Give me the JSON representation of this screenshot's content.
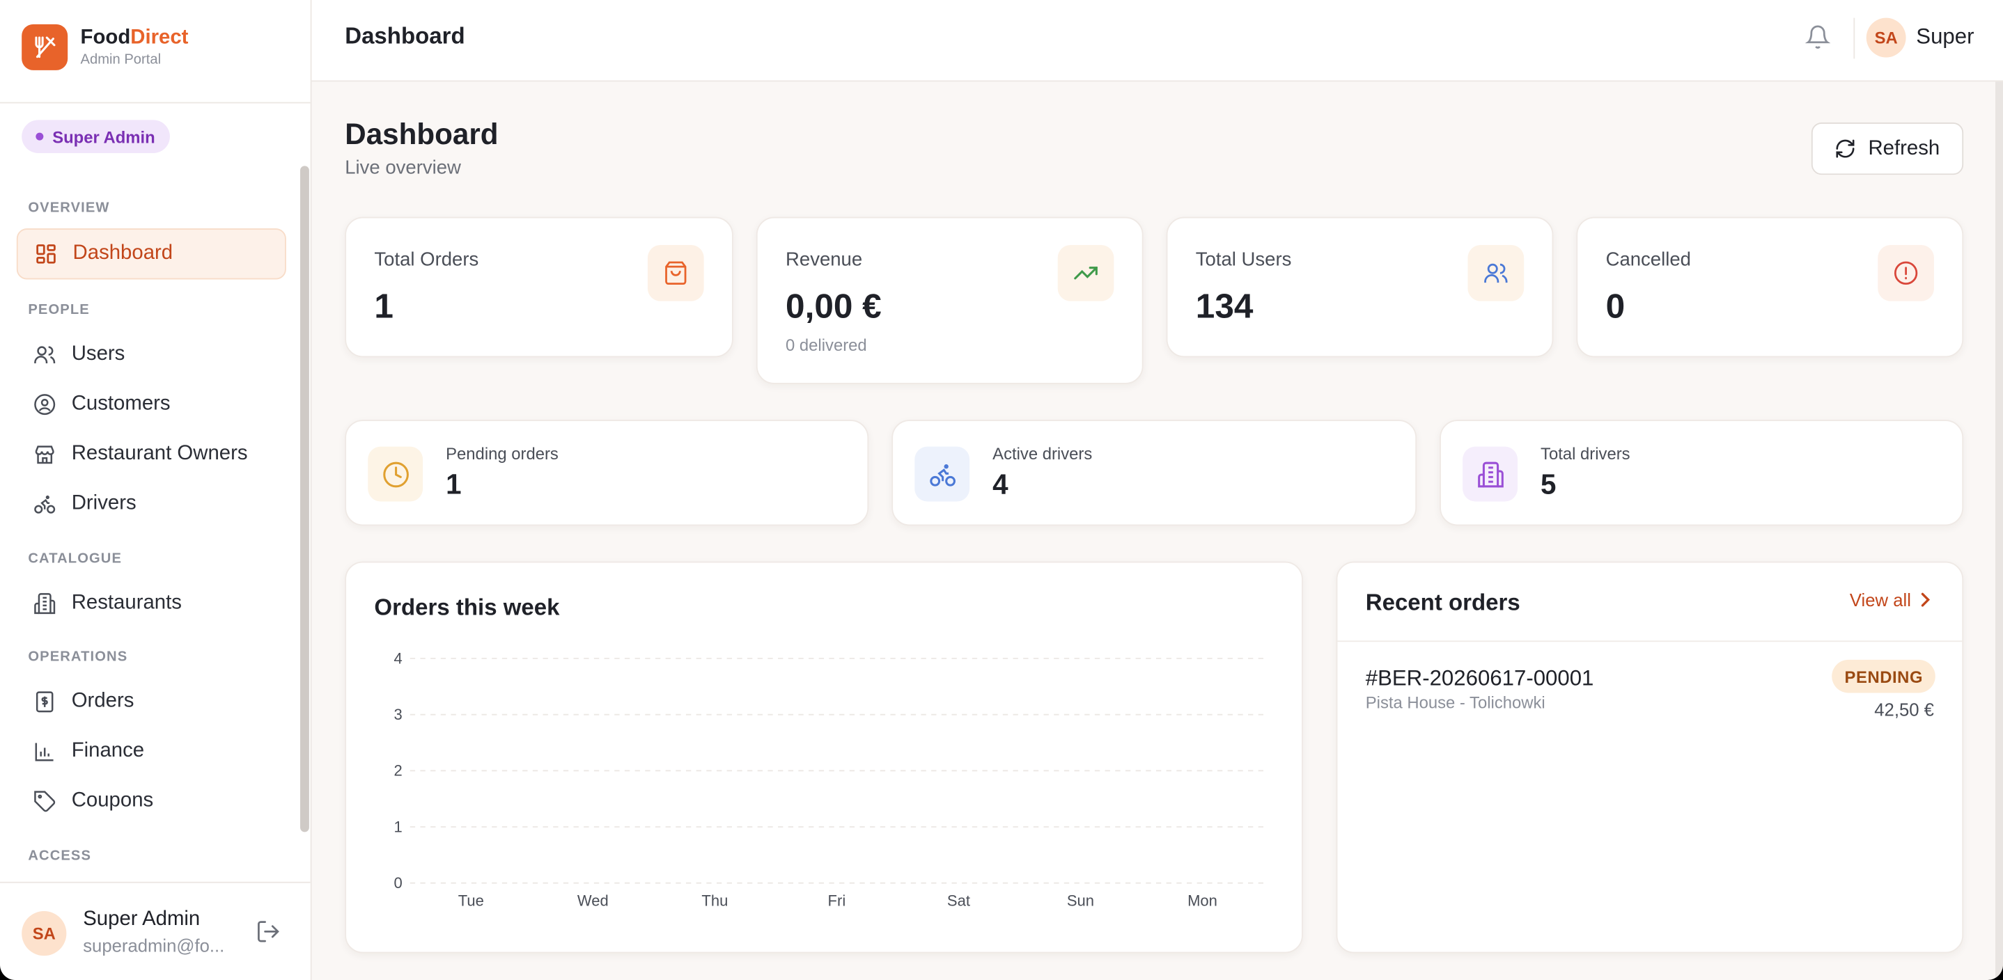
{
  "brand": {
    "name_part1": "Food",
    "name_part2": "Direct",
    "subtitle": "Admin Portal",
    "accent": "#e8632a"
  },
  "role_badge": "Super Admin",
  "sidebar": {
    "sections": {
      "overview": "OVERVIEW",
      "people": "PEOPLE",
      "catalogue": "CATALOGUE",
      "operations": "OPERATIONS",
      "access": "ACCESS"
    },
    "items": [
      {
        "label": "Dashboard",
        "icon": "dashboard-icon",
        "active": true
      },
      {
        "label": "Users",
        "icon": "users-icon"
      },
      {
        "label": "Customers",
        "icon": "customer-icon"
      },
      {
        "label": "Restaurant Owners",
        "icon": "store-icon"
      },
      {
        "label": "Drivers",
        "icon": "bike-icon"
      },
      {
        "label": "Restaurants",
        "icon": "building-icon"
      },
      {
        "label": "Orders",
        "icon": "receipt-icon"
      },
      {
        "label": "Finance",
        "icon": "bar-chart-icon"
      },
      {
        "label": "Coupons",
        "icon": "tag-icon"
      }
    ],
    "footer": {
      "initials": "SA",
      "name": "Super Admin",
      "email": "superadmin@fo..."
    }
  },
  "topbar": {
    "title": "Dashboard",
    "initials": "SA",
    "user": "Super"
  },
  "page": {
    "title": "Dashboard",
    "subtitle": "Live overview",
    "refresh_label": "Refresh"
  },
  "stats": [
    {
      "label": "Total Orders",
      "value": "1",
      "icon": "shopping-bag-icon",
      "color": "#e8632a"
    },
    {
      "label": "Revenue",
      "value": "0,00 €",
      "sub": "0 delivered",
      "icon": "trending-up-icon",
      "color": "#3f9a4a"
    },
    {
      "label": "Total Users",
      "value": "134",
      "icon": "users-icon",
      "color": "#4a78d6"
    },
    {
      "label": "Cancelled",
      "value": "0",
      "icon": "alert-circle-icon",
      "color": "#d9473a"
    }
  ],
  "mini_stats": [
    {
      "label": "Pending orders",
      "value": "1",
      "icon": "clock-icon",
      "color": "#e0a030"
    },
    {
      "label": "Active drivers",
      "value": "4",
      "icon": "bike-icon",
      "color": "#4a78d6"
    },
    {
      "label": "Total drivers",
      "value": "5",
      "icon": "building-icon",
      "color": "#9a4fd6"
    }
  ],
  "orders_chart": {
    "title": "Orders this week"
  },
  "chart_data": {
    "type": "bar",
    "categories": [
      "Tue",
      "Wed",
      "Thu",
      "Fri",
      "Sat",
      "Sun",
      "Mon"
    ],
    "values": [
      0,
      0,
      0,
      0,
      0,
      0,
      0
    ],
    "yticks": [
      "0",
      "1",
      "2",
      "3",
      "4"
    ],
    "ylim": [
      0,
      4
    ],
    "grid": true
  },
  "recent_orders": {
    "title": "Recent orders",
    "view_all": "View all",
    "items": [
      {
        "id": "#BER-20260617-00001",
        "restaurant": "Pista House - Tolichowki",
        "status": "PENDING",
        "total": "42,50 €"
      }
    ]
  }
}
